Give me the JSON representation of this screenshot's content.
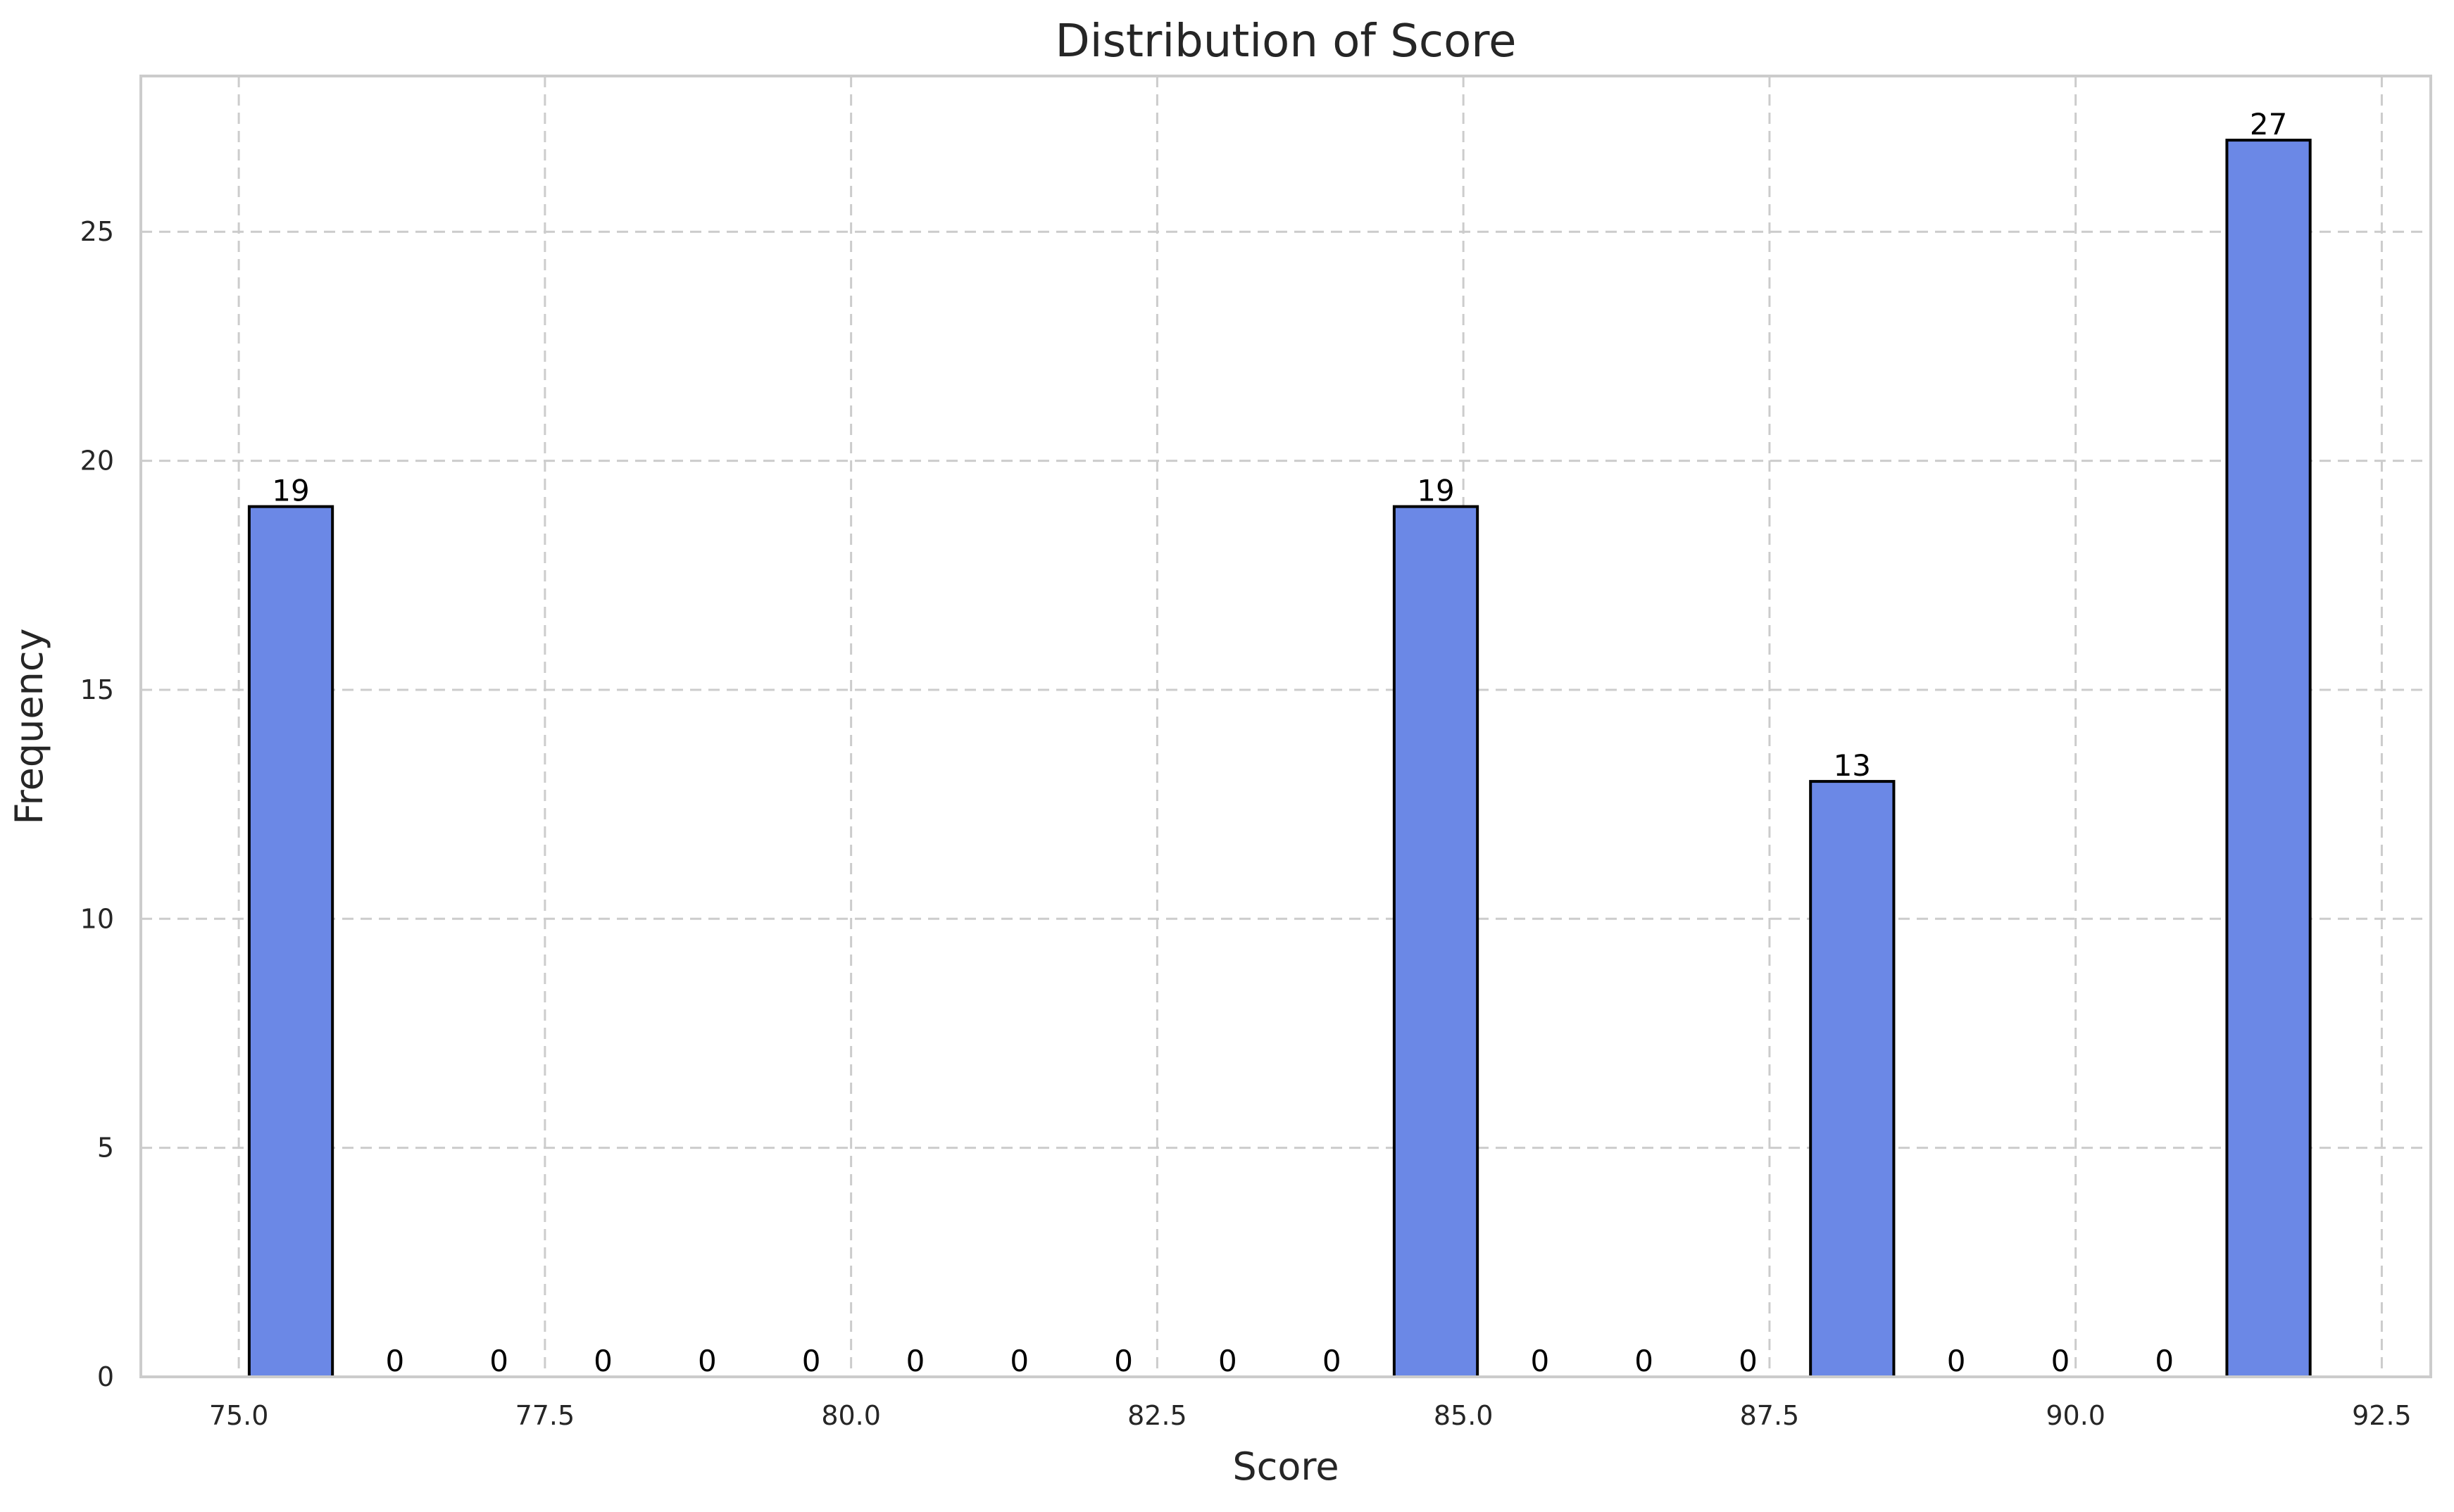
{
  "chart_data": {
    "type": "bar",
    "title": "Distribution of Score",
    "xlabel": "Score",
    "ylabel": "Frequency",
    "xlim": [
      74.2,
      92.9
    ],
    "ylim": [
      0,
      28.4
    ],
    "x_ticks": [
      75.0,
      77.5,
      80.0,
      82.5,
      85.0,
      87.5,
      90.0,
      92.5
    ],
    "x_tick_labels": [
      "75.0",
      "77.5",
      "80.0",
      "82.5",
      "85.0",
      "87.5",
      "90.0",
      "92.5"
    ],
    "y_ticks": [
      0,
      5,
      10,
      15,
      20,
      25
    ],
    "y_tick_labels": [
      "0",
      "5",
      "10",
      "15",
      "20",
      "25"
    ],
    "bins": {
      "start": 75.0,
      "end": 92.0,
      "count": 20
    },
    "values": [
      19,
      0,
      0,
      0,
      0,
      0,
      0,
      0,
      0,
      0,
      0,
      19,
      0,
      0,
      0,
      13,
      0,
      0,
      0,
      27
    ],
    "bar_color": "#6b88e6",
    "edge_color": "#000000",
    "grid": true,
    "legend": "none"
  }
}
